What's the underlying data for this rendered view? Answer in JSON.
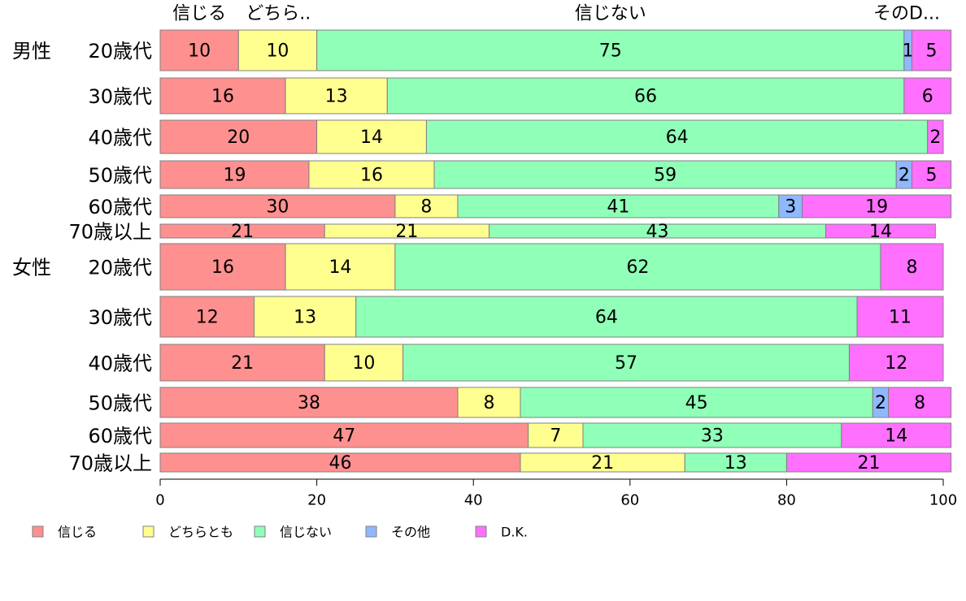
{
  "chart_data": {
    "type": "bar",
    "orientation": "horizontal",
    "stacked": true,
    "xlim": [
      0,
      100
    ],
    "x_ticks": [
      0,
      20,
      40,
      60,
      80,
      100
    ],
    "top_labels": [
      "信じる",
      "どちら..",
      "信じない",
      "その",
      "D..."
    ],
    "group_labels": [
      "男性",
      "女性"
    ],
    "categories": [
      "20歳代",
      "30歳代",
      "40歳代",
      "50歳代",
      "60歳代",
      "70歳以上",
      "20歳代",
      "30歳代",
      "40歳代",
      "50歳代",
      "60歳代",
      "70歳以上"
    ],
    "series": [
      {
        "name": "信じる",
        "color": "#FF9090",
        "values": [
          10,
          16,
          20,
          19,
          30,
          21,
          16,
          12,
          21,
          38,
          47,
          46
        ]
      },
      {
        "name": "どちらとも",
        "color": "#FFFF90",
        "values": [
          10,
          13,
          14,
          16,
          8,
          21,
          14,
          13,
          10,
          8,
          7,
          21
        ]
      },
      {
        "name": "信じない",
        "color": "#90FFB8",
        "values": [
          75,
          66,
          64,
          59,
          41,
          43,
          62,
          64,
          57,
          45,
          33,
          13
        ]
      },
      {
        "name": "その他",
        "color": "#90B8FF",
        "values": [
          1,
          0,
          0,
          2,
          3,
          0,
          0,
          0,
          0,
          2,
          0,
          0
        ]
      },
      {
        "name": "D.K.",
        "color": "#FF70FF",
        "values": [
          5,
          6,
          2,
          5,
          19,
          14,
          8,
          11,
          12,
          8,
          14,
          21
        ]
      }
    ],
    "legend_position": "bottom-left"
  }
}
